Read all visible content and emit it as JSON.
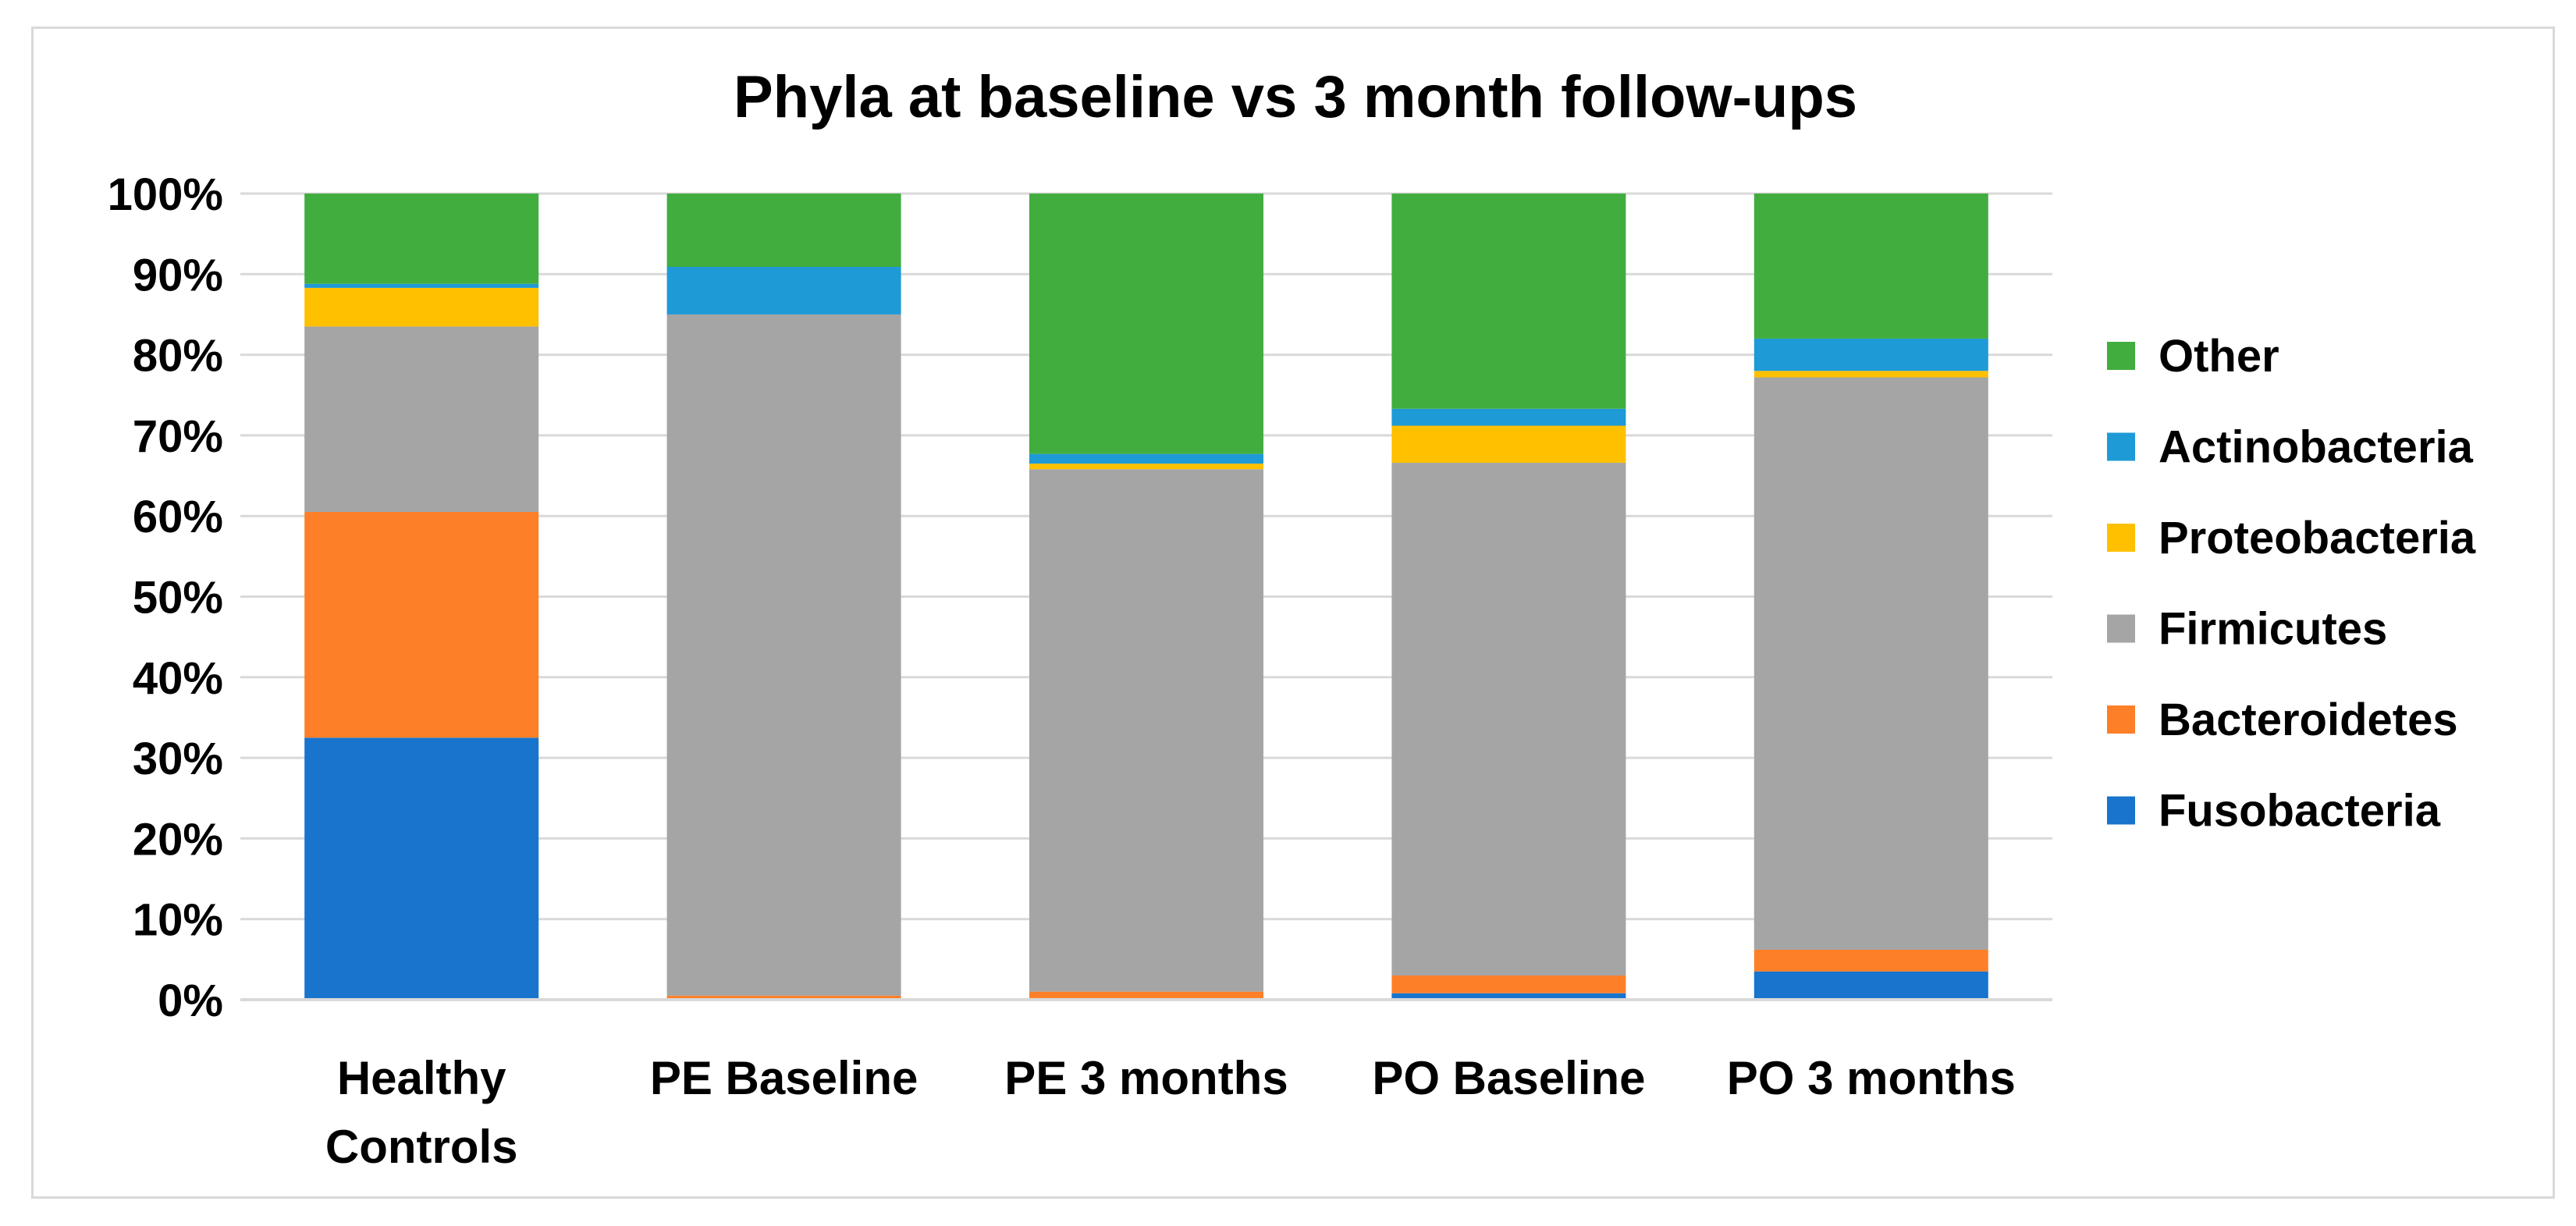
{
  "chart_data": {
    "type": "bar",
    "stacked": true,
    "percent": true,
    "title": "Phyla at baseline vs 3 month follow-ups",
    "xlabel": "",
    "ylabel": "",
    "ylim": [
      0,
      100
    ],
    "y_ticks": [
      "0%",
      "10%",
      "20%",
      "30%",
      "40%",
      "50%",
      "60%",
      "70%",
      "80%",
      "90%",
      "100%"
    ],
    "grid": true,
    "legend_position": "right",
    "categories": [
      [
        "Healthy",
        "Controls"
      ],
      [
        "PE Baseline"
      ],
      [
        "PE 3 months"
      ],
      [
        "PO Baseline"
      ],
      [
        "PO 3 months"
      ]
    ],
    "series": [
      {
        "name": "Fusobacteria",
        "color": "#1874cd",
        "values": [
          32.5,
          0.1,
          0.2,
          0.8,
          3.5
        ]
      },
      {
        "name": "Bacteroidetes",
        "color": "#fd7f28",
        "values": [
          28.0,
          0.4,
          0.8,
          2.2,
          2.7
        ]
      },
      {
        "name": "Firmicutes",
        "color": "#a5a5a5",
        "values": [
          23.0,
          84.5,
          64.8,
          63.6,
          71.0
        ]
      },
      {
        "name": "Proteobacteria",
        "color": "#ffc000",
        "values": [
          4.8,
          0.0,
          0.7,
          4.6,
          0.8
        ]
      },
      {
        "name": "Actinobacteria",
        "color": "#1e9ad6",
        "values": [
          0.5,
          5.9,
          1.2,
          2.1,
          4.0
        ]
      },
      {
        "name": "Other",
        "color": "#41ad3f",
        "values": [
          11.2,
          9.1,
          32.3,
          26.7,
          18.0
        ]
      }
    ]
  }
}
